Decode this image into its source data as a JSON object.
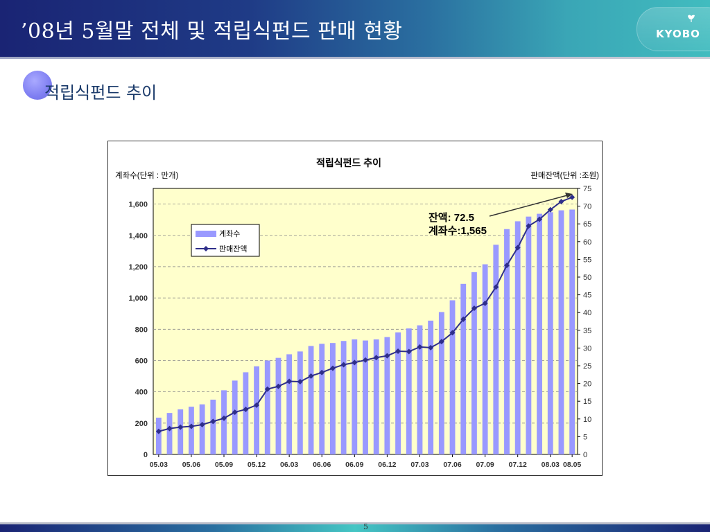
{
  "header": {
    "title": "’08년 5월말 전체 및 적립식펀드 판매 현황",
    "logo_text": "KYOBO"
  },
  "section": {
    "title": "적립식펀드 추이"
  },
  "footer": {
    "page_number": "5"
  },
  "colors": {
    "bar": "#9999ff",
    "line": "#2e2e8a",
    "plot_bg": "#ffffcc",
    "header_start": "#1a2474",
    "header_end": "#41bcbf"
  },
  "chart_data": {
    "type": "bar",
    "title": "적립식펀드 추이",
    "ylabel_left": "계좌수(단위 : 만개)",
    "ylabel_right": "판매잔액(단위 :조원)",
    "xlabel": "",
    "ylim_left": [
      0,
      1700
    ],
    "ylim_right": [
      0,
      75
    ],
    "yticks_left": [
      "0",
      "200",
      "400",
      "600",
      "800",
      "1,000",
      "1,200",
      "1,400",
      "1,600"
    ],
    "yticks_right": [
      "0",
      "5",
      "10",
      "15",
      "20",
      "25",
      "30",
      "35",
      "40",
      "45",
      "50",
      "55",
      "60",
      "65",
      "70",
      "75"
    ],
    "xtick_labels": [
      "05.03",
      "05.06",
      "05.09",
      "05.12",
      "06.03",
      "06.06",
      "06.09",
      "06.12",
      "07.03",
      "07.06",
      "07.09",
      "07.12",
      "08.03",
      "08.05"
    ],
    "grid": true,
    "legend_position": "upper-left",
    "categories": [
      "05.03",
      "05.04",
      "05.05",
      "05.06",
      "05.07",
      "05.08",
      "05.09",
      "05.10",
      "05.11",
      "05.12",
      "06.01",
      "06.02",
      "06.03",
      "06.04",
      "06.05",
      "06.06",
      "06.07",
      "06.08",
      "06.09",
      "06.10",
      "06.11",
      "06.12",
      "07.01",
      "07.02",
      "07.03",
      "07.04",
      "07.05",
      "07.06",
      "07.07",
      "07.08",
      "07.09",
      "07.10",
      "07.11",
      "07.12",
      "08.01",
      "08.02",
      "08.03",
      "08.04",
      "08.05"
    ],
    "series": [
      {
        "name": "계좌수",
        "type": "bar",
        "axis": "left",
        "values": [
          235,
          265,
          288,
          305,
          320,
          350,
          410,
          472,
          525,
          563,
          600,
          617,
          640,
          658,
          693,
          707,
          712,
          725,
          735,
          728,
          735,
          750,
          780,
          805,
          825,
          855,
          910,
          985,
          1090,
          1165,
          1215,
          1340,
          1440,
          1490,
          1520,
          1538,
          1548,
          1560,
          1565
        ]
      },
      {
        "name": "판매잔액",
        "type": "line",
        "axis": "right",
        "values": [
          6.5,
          7.3,
          7.7,
          7.9,
          8.4,
          9.3,
          10.2,
          11.9,
          12.7,
          13.9,
          18.4,
          19.2,
          20.6,
          20.5,
          22.1,
          23.1,
          24.3,
          25.3,
          25.9,
          26.6,
          27.3,
          27.8,
          29.1,
          29.0,
          30.3,
          30.1,
          31.8,
          34.3,
          38.1,
          41.2,
          42.6,
          47.2,
          53.3,
          58.3,
          64.4,
          66.3,
          69.0,
          71.3,
          72.5
        ]
      }
    ],
    "annotation": {
      "line1": "잔액: 72.5",
      "line2": "계좌수:1,565"
    }
  }
}
